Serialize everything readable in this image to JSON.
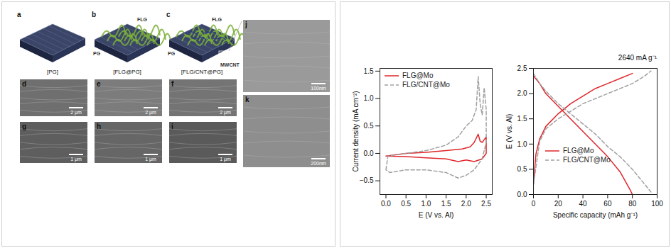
{
  "figure_left": {
    "schematics": [
      {
        "letter": "a",
        "caption": "[PG]",
        "labels": []
      },
      {
        "letter": "b",
        "caption": "[FLG@PG]",
        "labels": [
          "FLG",
          "PG"
        ]
      },
      {
        "letter": "c",
        "caption": "[FLG/CNT@PG]",
        "labels": [
          "FLG",
          "PG",
          "MWCNT"
        ]
      }
    ],
    "images": [
      {
        "letter": "d",
        "scale_bar": "2 μm"
      },
      {
        "letter": "e",
        "scale_bar": "2 μm"
      },
      {
        "letter": "f",
        "scale_bar": "2 μm"
      },
      {
        "letter": "g",
        "scale_bar": "1 μm"
      },
      {
        "letter": "h",
        "scale_bar": "1 μm"
      },
      {
        "letter": "i",
        "scale_bar": "1 μm"
      },
      {
        "letter": "j",
        "scale_bar": "100nm"
      },
      {
        "letter": "k",
        "scale_bar": "200nm"
      }
    ]
  },
  "chart_data": [
    {
      "type": "line",
      "x_label": "E (V vs. Al)",
      "y_label": "Current density (mA cm⁻²)",
      "xlim": [
        -0.15,
        2.65
      ],
      "xticks": [
        {
          "value": 0,
          "label": "0.0"
        },
        {
          "value": 0.5,
          "label": "0.5"
        },
        {
          "value": 1,
          "label": "1.0"
        },
        {
          "value": 1.5,
          "label": "1.5"
        },
        {
          "value": 2,
          "label": "2.0"
        },
        {
          "value": 2.5,
          "label": "2.5"
        }
      ],
      "ylim": [
        -0.75,
        1.55
      ],
      "yticks": [
        {
          "value": -0.5,
          "label": "−0.5"
        },
        {
          "value": 0,
          "label": "0.0"
        },
        {
          "value": 0.5,
          "label": "0.5"
        },
        {
          "value": 1,
          "label": "1.0"
        },
        {
          "value": 1.5,
          "label": "1.5"
        }
      ],
      "legend": "top-left",
      "series": [
        {
          "name": "FLG@Mo",
          "color": "#e0262b",
          "line_style": "solid",
          "x": [
            0.0,
            0.5,
            1.0,
            1.5,
            1.9,
            2.1,
            2.2,
            2.3,
            2.35,
            2.4,
            2.45,
            2.5,
            2.5,
            2.4,
            2.2,
            2.0,
            1.8,
            1.5,
            1.0,
            0.5,
            0.0
          ],
          "values": [
            -0.05,
            0.0,
            0.02,
            0.05,
            0.08,
            0.12,
            0.2,
            0.35,
            0.22,
            0.2,
            0.25,
            0.3,
            0.0,
            -0.1,
            -0.15,
            -0.12,
            -0.15,
            -0.1,
            -0.08,
            -0.06,
            -0.05
          ]
        },
        {
          "name": "FLG/CNT@Mo",
          "color": "#a0a0a0",
          "line_style": "dashed",
          "x": [
            0.0,
            0.05,
            0.5,
            1.0,
            1.5,
            1.8,
            2.0,
            2.15,
            2.25,
            2.3,
            2.35,
            2.4,
            2.45,
            2.5,
            2.5,
            2.4,
            2.2,
            2.0,
            1.8,
            1.5,
            1.0,
            0.5,
            0.1,
            0.0
          ],
          "values": [
            -0.3,
            -0.05,
            0.0,
            0.05,
            0.15,
            0.3,
            0.5,
            0.6,
            0.8,
            1.4,
            0.9,
            0.7,
            1.2,
            0.8,
            0.2,
            -0.1,
            -0.3,
            -0.4,
            -0.45,
            -0.35,
            -0.3,
            -0.3,
            -0.35,
            -0.3
          ]
        }
      ]
    },
    {
      "type": "line",
      "annotation": "2640 mA g⁻¹",
      "x_label": "Specific capacity (mAh g⁻¹)",
      "y_label": "E (V vs. Al)",
      "xlim": [
        0,
        100
      ],
      "xticks": [
        0,
        20,
        40,
        60,
        80,
        100
      ],
      "ylim": [
        0,
        2.5
      ],
      "yticks": [
        {
          "value": 0,
          "label": "0.0"
        },
        {
          "value": 0.5,
          "label": "0.5"
        },
        {
          "value": 1,
          "label": "1.0"
        },
        {
          "value": 1.5,
          "label": "1.5"
        },
        {
          "value": 2,
          "label": "2.0"
        },
        {
          "value": 2.5,
          "label": "2.5"
        }
      ],
      "legend": "bottom-left",
      "series": [
        {
          "name": "FLG@Mo",
          "color": "#e0262b",
          "line_style": "solid",
          "x": [
            0,
            2,
            5,
            10,
            20,
            30,
            40,
            50,
            60,
            70,
            80,
            null,
            0,
            5,
            10,
            20,
            30,
            40,
            50,
            60,
            70,
            78,
            80
          ],
          "values": [
            0.2,
            0.8,
            1.1,
            1.35,
            1.6,
            1.8,
            1.95,
            2.1,
            2.2,
            2.3,
            2.4,
            null,
            2.35,
            2.2,
            2.0,
            1.75,
            1.5,
            1.25,
            1.0,
            0.75,
            0.45,
            0.1,
            0.0
          ]
        },
        {
          "name": "FLG/CNT@Mo",
          "color": "#a0a0a0",
          "line_style": "dashed",
          "x": [
            0,
            5,
            10,
            20,
            30,
            40,
            50,
            60,
            70,
            80,
            90,
            95,
            null,
            0,
            5,
            10,
            20,
            30,
            40,
            50,
            60,
            70,
            80,
            90,
            95
          ],
          "values": [
            0.2,
            1.05,
            1.3,
            1.5,
            1.65,
            1.8,
            1.9,
            2.0,
            2.1,
            2.2,
            2.35,
            2.45,
            null,
            2.4,
            2.2,
            2.05,
            1.8,
            1.6,
            1.4,
            1.2,
            0.95,
            0.75,
            0.5,
            0.2,
            0.05
          ]
        }
      ]
    }
  ]
}
